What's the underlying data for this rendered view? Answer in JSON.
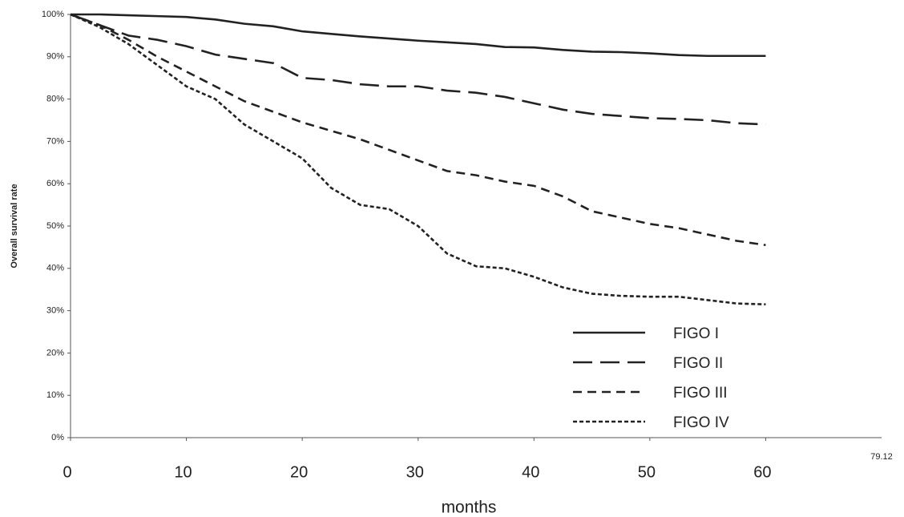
{
  "chart_data": {
    "type": "line",
    "y_label": "Overall survival rate",
    "x_label": "months",
    "annotation": "79.12",
    "x": [
      0,
      2.5,
      5,
      7.5,
      10,
      12.5,
      15,
      17.5,
      20,
      22.5,
      25,
      27.5,
      30,
      32.5,
      35,
      37.5,
      40,
      42.5,
      45,
      47.5,
      50,
      52.5,
      55,
      57.5,
      60
    ],
    "series": [
      {
        "name": "FIGO I",
        "color": "#222222",
        "dash": "none",
        "values": [
          100,
          100,
          99.8,
          99.6,
          99.4,
          98.8,
          97.8,
          97.2,
          96,
          95.4,
          94.8,
          94.3,
          93.8,
          93.4,
          93,
          92.3,
          92.2,
          91.6,
          91.2,
          91.1,
          90.8,
          90.4,
          90.2,
          90.2,
          90.2
        ]
      },
      {
        "name": "FIGO II",
        "color": "#222222",
        "dash": "24 10",
        "values": [
          100,
          97.5,
          95,
          94,
          92.5,
          90.5,
          89.5,
          88.5,
          85,
          84.5,
          83.5,
          83,
          83,
          82,
          81.5,
          80.5,
          79,
          77.5,
          76.5,
          76,
          75.5,
          75.3,
          75,
          74.3,
          74
        ]
      },
      {
        "name": "FIGO III",
        "color": "#222222",
        "dash": "11 7",
        "values": [
          100,
          97.5,
          94,
          90,
          86.5,
          83,
          79.5,
          77,
          74.5,
          72.5,
          70.5,
          68,
          65.5,
          63,
          62,
          60.5,
          59.5,
          57,
          53.5,
          52,
          50.5,
          49.5,
          48,
          46.5,
          45.5
        ]
      },
      {
        "name": "FIGO IV",
        "color": "#222222",
        "dash": "5 3",
        "values": [
          100,
          97,
          93,
          88,
          83,
          80,
          74,
          70,
          66,
          59,
          55,
          54,
          50,
          43.5,
          40.5,
          40,
          38,
          35.5,
          34,
          33.5,
          33.3,
          33.3,
          32.5,
          31.7,
          31.5
        ]
      }
    ],
    "xlim": [
      0,
      70
    ],
    "xticks": [
      0,
      10,
      20,
      30,
      40,
      50,
      60
    ],
    "ylim": [
      0,
      100
    ],
    "yticks": [
      {
        "value": 0,
        "label": "0%"
      },
      {
        "value": 10,
        "label": "10%"
      },
      {
        "value": 20,
        "label": "20%"
      },
      {
        "value": 30,
        "label": "30%"
      },
      {
        "value": 40,
        "label": "40%"
      },
      {
        "value": 50,
        "label": "50%"
      },
      {
        "value": 60,
        "label": "60%"
      },
      {
        "value": 70,
        "label": "70%"
      },
      {
        "value": 80,
        "label": "80%"
      },
      {
        "value": 90,
        "label": "90%"
      },
      {
        "value": 100,
        "label": "100%"
      }
    ],
    "grid": false,
    "legend": "lower right"
  }
}
